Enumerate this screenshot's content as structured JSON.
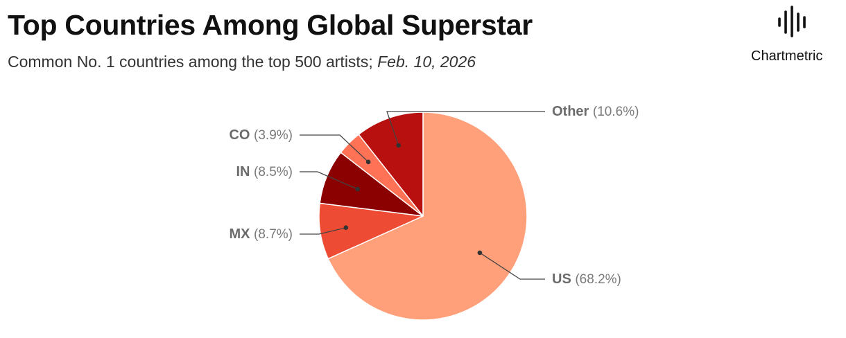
{
  "header": {
    "title": "Top Countries Among Global Superstar",
    "subtitle_main": "Common No. 1 countries among the top 500 artists; ",
    "subtitle_date": "Feb. 10, 2026"
  },
  "brand": {
    "name": "Chartmetric",
    "logo_icon": "soundwave-bars-icon"
  },
  "chart_data": {
    "type": "pie",
    "title": "Top Countries Among Global Superstar",
    "subtitle": "Common No. 1 countries among the top 500 artists; Feb. 10, 2026",
    "slices": [
      {
        "label": "US",
        "value": 68.2,
        "display": "(68.2%)",
        "color": "#FFA07A"
      },
      {
        "label": "MX",
        "value": 8.7,
        "display": "(8.7%)",
        "color": "#EE4B35"
      },
      {
        "label": "IN",
        "value": 8.5,
        "display": "(8.5%)",
        "color": "#8B0000"
      },
      {
        "label": "CO",
        "value": 3.9,
        "display": "(3.9%)",
        "color": "#FF7256"
      },
      {
        "label": "Other",
        "value": 10.6,
        "display": "(10.6%)",
        "color": "#B80F0F"
      }
    ],
    "start": "12 o'clock",
    "direction": "clockwise",
    "labels": "outside, with leader lines"
  }
}
